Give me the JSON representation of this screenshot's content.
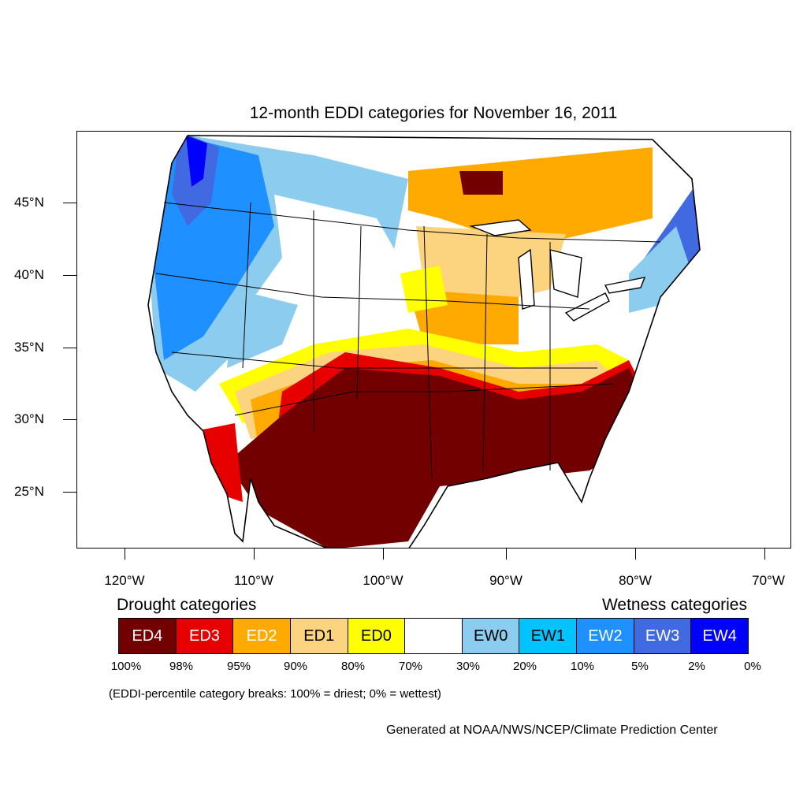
{
  "title": "12-month EDDI categories for November 16, 2011",
  "lat_labels": [
    "45°N",
    "40°N",
    "35°N",
    "30°N",
    "25°N"
  ],
  "lon_labels": [
    "120°W",
    "110°W",
    "100°W",
    "90°W",
    "80°W",
    "70°W"
  ],
  "legend": {
    "drought_heading": "Drought categories",
    "wetness_heading": "Wetness categories",
    "categories": [
      {
        "label": "ED4",
        "color": "#730000",
        "text_color": "#ffffff"
      },
      {
        "label": "ED3",
        "color": "#e60000",
        "text_color": "#ffffff"
      },
      {
        "label": "ED2",
        "color": "#ffaa00",
        "text_color": "#ffffff"
      },
      {
        "label": "ED1",
        "color": "#fcd37f",
        "text_color": "#000000"
      },
      {
        "label": "ED0",
        "color": "#ffff00",
        "text_color": "#000000"
      },
      {
        "label": "",
        "color": "#ffffff",
        "text_color": "#000000"
      },
      {
        "label": "EW0",
        "color": "#8ccdef",
        "text_color": "#000000"
      },
      {
        "label": "EW1",
        "color": "#00c3ff",
        "text_color": "#000000"
      },
      {
        "label": "EW2",
        "color": "#1e90ff",
        "text_color": "#ffffff"
      },
      {
        "label": "EW3",
        "color": "#4169e1",
        "text_color": "#ffffff"
      },
      {
        "label": "EW4",
        "color": "#0000ff",
        "text_color": "#ffffff"
      }
    ],
    "breaks": [
      "100%",
      "98%",
      "95%",
      "90%",
      "80%",
      "70%",
      "30%",
      "20%",
      "10%",
      "5%",
      "2%",
      "0%"
    ],
    "note": "(EDDI-percentile category breaks: 100% = driest; 0% = wettest)"
  },
  "credit": "Generated at NOAA/NWS/NCEP/Climate Prediction Center"
}
